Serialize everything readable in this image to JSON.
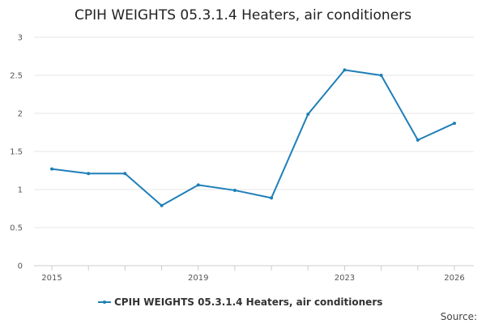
{
  "chart_data": {
    "type": "line",
    "title": "CPIH WEIGHTS 05.3.1.4 Heaters, air conditioners",
    "xlabel": "",
    "ylabel": "",
    "x": [
      2015,
      2016,
      2017,
      2018,
      2019,
      2020,
      2021,
      2022,
      2023,
      2024,
      2025,
      2026
    ],
    "x_tick_labels": [
      "2015",
      "2019",
      "2023",
      "2026"
    ],
    "x_tick_values": [
      2015,
      2019,
      2023,
      2026
    ],
    "y_ticks": [
      "0",
      "0.5",
      "1",
      "1.5",
      "2",
      "2.5",
      "3"
    ],
    "ylim": [
      0,
      3
    ],
    "xlim": [
      2015,
      2026
    ],
    "grid": true,
    "legend_position": "bottom",
    "series": [
      {
        "name": "CPIH WEIGHTS 05.3.1.4 Heaters, air conditioners",
        "color": "#1f7fb8",
        "values": [
          1.27,
          1.21,
          1.21,
          0.79,
          1.06,
          0.99,
          0.89,
          1.99,
          2.57,
          2.5,
          1.65,
          1.87
        ]
      }
    ],
    "source_label": "Source:"
  }
}
